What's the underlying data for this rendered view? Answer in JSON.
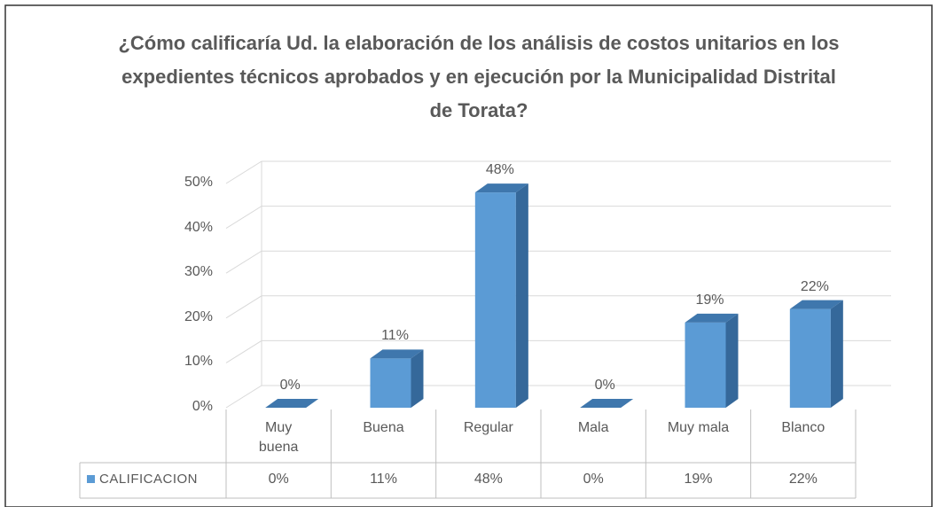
{
  "chart_data": {
    "type": "bar",
    "title": "¿Cómo calificaría Ud. la elaboración de los análisis de costos unitarios en los expedientes técnicos aprobados y en ejecución por la Municipalidad Distrital de Torata?",
    "categories": [
      "Muy buena",
      "Buena",
      "Regular",
      "Mala",
      "Muy mala",
      "Blanco"
    ],
    "series": [
      {
        "name": "CALIFICACION",
        "color": "#5b9bd5",
        "values": [
          0,
          11,
          48,
          0,
          19,
          22
        ],
        "value_labels": [
          "0%",
          "11%",
          "48%",
          "0%",
          "19%",
          "22%"
        ]
      }
    ],
    "ylim": [
      0,
      50
    ],
    "yticks": [
      {
        "value": 0,
        "label": "0%"
      },
      {
        "value": 10,
        "label": "10%"
      },
      {
        "value": 20,
        "label": "20%"
      },
      {
        "value": 30,
        "label": "30%"
      },
      {
        "value": 40,
        "label": "40%"
      },
      {
        "value": 50,
        "label": "50%"
      }
    ],
    "grid": true
  }
}
